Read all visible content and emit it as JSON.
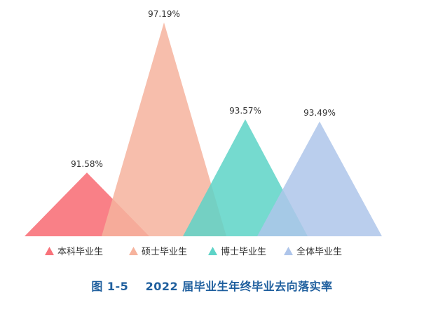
{
  "chart_data": {
    "type": "bar",
    "categories": [
      "本科毕业生",
      "硕士毕业生",
      "博士毕业生",
      "全体毕业生"
    ],
    "values": [
      91.58,
      97.19,
      93.57,
      93.49
    ],
    "value_labels": [
      "91.58%",
      "97.19%",
      "93.57%",
      "93.49%"
    ],
    "colors": [
      "#f8727a",
      "#f6b39d",
      "#5dd3c7",
      "#aec5ea"
    ],
    "legend_position": "bottom",
    "grid": false
  },
  "caption": {
    "figure_no": "图 1-5",
    "title": "2022 届毕业生年终毕业去向落实率"
  }
}
